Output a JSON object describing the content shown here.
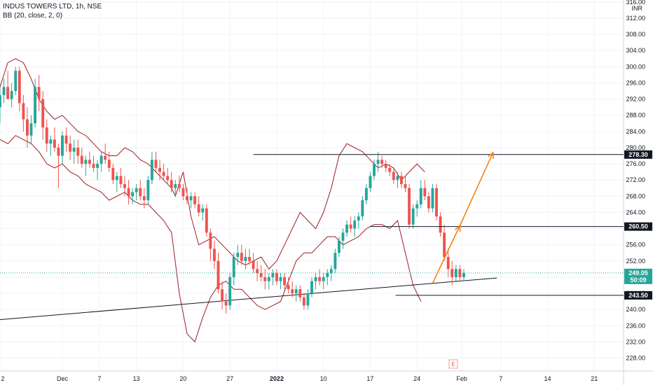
{
  "header": {
    "title": "INDUS TOWERS LTD, 1h, NSE",
    "indicator": "BB (20, close, 2, 0)"
  },
  "colors": {
    "up": "#26a69a",
    "down": "#ef5350",
    "bollinger": "#9c1e23",
    "level_line": "#131722",
    "projection": "#f57c00",
    "current_price_line": "#26a69a",
    "level_label_bg": "#131722"
  },
  "chart_data": {
    "type": "candlestick",
    "title": "INDUS TOWERS LTD, 1h, NSE",
    "currency": "INR",
    "y_axis": {
      "ylim": [
        224.8,
        316.5
      ],
      "ticks": [
        228,
        232,
        236,
        240,
        244,
        248,
        252,
        256,
        260,
        264,
        268,
        272,
        276,
        280,
        284,
        288,
        292,
        296,
        300,
        304,
        308,
        312,
        316
      ],
      "tick_labels": [
        "228.00",
        "232.00",
        "236.00",
        "240.00",
        "244.00",
        "248.00",
        "252.00",
        "256.00",
        "260.00",
        "264.00",
        "268.00",
        "272.00",
        "276.00",
        "280.00",
        "284.00",
        "288.00",
        "292.00",
        "296.00",
        "300.00",
        "304.00",
        "308.00",
        "312.00",
        "316.00"
      ]
    },
    "x_axis": {
      "xlim": [
        0,
        320
      ],
      "ticks": [
        {
          "x": 0,
          "label": "2",
          "bold": false
        },
        {
          "x": 32,
          "label": "Dec",
          "bold": false
        },
        {
          "x": 51,
          "label": "7",
          "bold": false
        },
        {
          "x": 70,
          "label": "13",
          "bold": false
        },
        {
          "x": 94,
          "label": "20",
          "bold": false
        },
        {
          "x": 118,
          "label": "27",
          "bold": false
        },
        {
          "x": 142,
          "label": "2022",
          "bold": true
        },
        {
          "x": 166,
          "label": "10",
          "bold": false
        },
        {
          "x": 190,
          "label": "17",
          "bold": false
        },
        {
          "x": 214,
          "label": "24",
          "bold": false
        },
        {
          "x": 237,
          "label": "Feb",
          "bold": false
        },
        {
          "x": 257,
          "label": "7",
          "bold": false
        },
        {
          "x": 281,
          "label": "14",
          "bold": false
        },
        {
          "x": 305,
          "label": "21",
          "bold": false
        }
      ]
    },
    "candles_ohlc": [
      [
        290,
        295,
        286,
        293
      ],
      [
        293,
        297,
        291,
        295
      ],
      [
        295,
        299,
        293,
        292
      ],
      [
        292,
        296,
        290,
        294
      ],
      [
        294,
        300,
        293,
        299
      ],
      [
        299,
        300,
        289,
        291
      ],
      [
        291,
        293,
        284,
        287
      ],
      [
        287,
        290,
        280,
        283
      ],
      [
        283,
        288,
        281,
        286
      ],
      [
        286,
        297,
        285,
        295
      ],
      [
        295,
        298,
        289,
        292
      ],
      [
        292,
        294,
        282,
        285
      ],
      [
        285,
        287,
        279,
        281
      ],
      [
        281,
        283,
        278,
        282
      ],
      [
        282,
        285,
        279,
        280
      ],
      [
        280,
        281,
        270,
        278
      ],
      [
        278,
        284,
        276,
        283
      ],
      [
        283,
        285,
        279,
        281
      ],
      [
        281,
        283,
        277,
        279
      ],
      [
        279,
        282,
        276,
        280
      ],
      [
        280,
        282,
        276,
        278
      ],
      [
        278,
        280,
        275,
        276
      ],
      [
        276,
        278,
        273,
        277
      ],
      [
        277,
        279,
        275,
        276
      ],
      [
        276,
        278,
        274,
        275
      ],
      [
        275,
        277,
        272,
        276
      ],
      [
        276,
        279,
        274,
        278
      ],
      [
        278,
        281,
        276,
        277
      ],
      [
        277,
        279,
        274,
        275
      ],
      [
        275,
        276,
        271,
        272
      ],
      [
        272,
        274,
        269,
        273
      ],
      [
        273,
        275,
        270,
        271
      ],
      [
        271,
        273,
        268,
        270
      ],
      [
        270,
        272,
        266,
        268
      ],
      [
        268,
        270,
        266,
        269
      ],
      [
        269,
        271,
        267,
        270
      ],
      [
        270,
        272,
        267,
        268
      ],
      [
        268,
        270,
        265,
        267
      ],
      [
        267,
        273,
        266,
        272
      ],
      [
        272,
        279,
        271,
        277
      ],
      [
        277,
        279,
        274,
        275
      ],
      [
        275,
        277,
        272,
        274
      ],
      [
        274,
        276,
        272,
        273
      ],
      [
        273,
        275,
        271,
        272
      ],
      [
        272,
        274,
        269,
        270
      ],
      [
        270,
        272,
        268,
        271
      ],
      [
        271,
        273,
        269,
        270
      ],
      [
        270,
        271,
        267,
        268
      ],
      [
        268,
        270,
        266,
        267
      ],
      [
        267,
        269,
        265,
        268
      ],
      [
        268,
        269,
        265,
        266
      ],
      [
        266,
        268,
        263,
        264
      ],
      [
        264,
        266,
        262,
        265
      ],
      [
        265,
        266,
        258,
        259
      ],
      [
        259,
        260,
        252,
        255
      ],
      [
        255,
        257,
        250,
        252
      ],
      [
        252,
        254,
        244,
        245
      ],
      [
        245,
        247,
        240,
        242
      ],
      [
        242,
        244,
        239,
        241
      ],
      [
        241,
        249,
        240,
        248
      ],
      [
        248,
        254,
        246,
        253
      ],
      [
        253,
        256,
        251,
        254
      ],
      [
        254,
        256,
        251,
        252
      ],
      [
        252,
        255,
        250,
        253
      ],
      [
        253,
        255,
        251,
        252
      ],
      [
        252,
        254,
        249,
        250
      ],
      [
        250,
        252,
        247,
        249
      ],
      [
        249,
        251,
        247,
        248
      ],
      [
        248,
        250,
        245,
        247
      ],
      [
        247,
        249,
        245,
        248
      ],
      [
        248,
        250,
        246,
        249
      ],
      [
        249,
        250,
        246,
        247
      ],
      [
        247,
        249,
        245,
        248
      ],
      [
        248,
        249,
        245,
        246
      ],
      [
        246,
        248,
        244,
        245
      ],
      [
        245,
        247,
        243,
        244
      ],
      [
        244,
        246,
        242,
        245
      ],
      [
        245,
        246,
        242,
        243
      ],
      [
        243,
        244,
        240,
        241
      ],
      [
        241,
        245,
        240,
        244
      ],
      [
        244,
        248,
        243,
        247
      ],
      [
        247,
        249,
        245,
        248
      ],
      [
        248,
        250,
        246,
        247
      ],
      [
        247,
        249,
        245,
        248
      ],
      [
        248,
        250,
        246,
        249
      ],
      [
        249,
        251,
        247,
        250
      ],
      [
        250,
        255,
        249,
        254
      ],
      [
        254,
        258,
        253,
        257
      ],
      [
        257,
        260,
        255,
        259
      ],
      [
        259,
        262,
        258,
        261
      ],
      [
        261,
        263,
        259,
        260
      ],
      [
        260,
        263,
        258,
        262
      ],
      [
        262,
        264,
        260,
        263
      ],
      [
        263,
        268,
        262,
        267
      ],
      [
        267,
        271,
        266,
        270
      ],
      [
        270,
        274,
        269,
        273
      ],
      [
        273,
        277,
        272,
        276
      ],
      [
        276,
        279,
        274,
        277
      ],
      [
        277,
        278,
        275,
        276
      ],
      [
        276,
        277,
        274,
        275
      ],
      [
        275,
        276,
        273,
        274
      ],
      [
        274,
        275,
        271,
        272
      ],
      [
        272,
        274,
        270,
        273
      ],
      [
        273,
        274,
        270,
        271
      ],
      [
        271,
        273,
        269,
        270
      ],
      [
        270,
        271,
        260,
        261
      ],
      [
        261,
        266,
        260,
        265
      ],
      [
        265,
        267,
        263,
        266
      ],
      [
        266,
        272,
        265,
        270
      ],
      [
        270,
        272,
        267,
        268
      ],
      [
        268,
        269,
        264,
        265
      ],
      [
        265,
        271,
        264,
        270
      ],
      [
        270,
        271,
        262,
        263
      ],
      [
        263,
        264,
        258,
        259
      ],
      [
        259,
        261,
        252,
        253
      ],
      [
        253,
        255,
        248,
        250
      ],
      [
        250,
        252,
        246,
        248
      ],
      [
        248,
        251,
        247,
        250
      ],
      [
        250,
        251,
        247,
        248
      ],
      [
        248,
        250,
        247,
        249
      ]
    ],
    "candle_start_x": 0,
    "candle_step_x": 2.0,
    "bollinger": {
      "upper": [
        [
          0,
          295
        ],
        [
          4,
          301
        ],
        [
          8,
          302
        ],
        [
          12,
          301
        ],
        [
          16,
          297
        ],
        [
          20,
          292
        ],
        [
          24,
          289
        ],
        [
          28,
          287
        ],
        [
          32,
          288
        ],
        [
          36,
          286
        ],
        [
          40,
          284
        ],
        [
          44,
          283
        ],
        [
          48,
          281
        ],
        [
          52,
          279
        ],
        [
          56,
          278
        ],
        [
          60,
          278
        ],
        [
          64,
          280
        ],
        [
          68,
          279
        ],
        [
          72,
          277
        ],
        [
          76,
          276
        ],
        [
          80,
          274
        ],
        [
          84,
          272
        ],
        [
          88,
          270
        ],
        [
          90,
          268
        ],
        [
          94,
          274
        ],
        [
          98,
          263
        ],
        [
          102,
          256
        ],
        [
          106,
          257
        ],
        [
          110,
          258
        ],
        [
          114,
          256
        ],
        [
          118,
          254
        ],
        [
          122,
          252
        ],
        [
          126,
          251
        ],
        [
          130,
          252
        ],
        [
          134,
          253
        ],
        [
          138,
          250
        ],
        [
          142,
          252
        ],
        [
          146,
          256
        ],
        [
          150,
          260
        ],
        [
          154,
          264
        ],
        [
          158,
          262
        ],
        [
          162,
          260
        ],
        [
          166,
          264
        ],
        [
          170,
          270
        ],
        [
          174,
          278
        ],
        [
          178,
          281
        ],
        [
          182,
          280
        ],
        [
          186,
          279
        ],
        [
          190,
          277
        ],
        [
          194,
          275
        ],
        [
          198,
          276
        ],
        [
          202,
          275
        ],
        [
          206,
          272
        ],
        [
          210,
          274
        ],
        [
          214,
          276
        ],
        [
          218,
          274
        ]
      ],
      "lower": [
        [
          0,
          282
        ],
        [
          4,
          281
        ],
        [
          8,
          283
        ],
        [
          12,
          282
        ],
        [
          16,
          281
        ],
        [
          20,
          279
        ],
        [
          24,
          276
        ],
        [
          28,
          275
        ],
        [
          32,
          276
        ],
        [
          36,
          274
        ],
        [
          40,
          273
        ],
        [
          44,
          271
        ],
        [
          48,
          270
        ],
        [
          52,
          269
        ],
        [
          56,
          267
        ],
        [
          60,
          268
        ],
        [
          64,
          269
        ],
        [
          68,
          267
        ],
        [
          72,
          266
        ],
        [
          76,
          266
        ],
        [
          80,
          264
        ],
        [
          84,
          262
        ],
        [
          88,
          259
        ],
        [
          92,
          244
        ],
        [
          96,
          234
        ],
        [
          100,
          232
        ],
        [
          104,
          238
        ],
        [
          108,
          243
        ],
        [
          112,
          246
        ],
        [
          116,
          247
        ],
        [
          120,
          245
        ],
        [
          124,
          245
        ],
        [
          128,
          243
        ],
        [
          132,
          241
        ],
        [
          136,
          240
        ],
        [
          140,
          241
        ],
        [
          144,
          242
        ],
        [
          148,
          247
        ],
        [
          152,
          252
        ],
        [
          156,
          254
        ],
        [
          160,
          254
        ],
        [
          164,
          256
        ],
        [
          168,
          258
        ],
        [
          172,
          258
        ],
        [
          176,
          256
        ],
        [
          180,
          257
        ],
        [
          184,
          258
        ],
        [
          188,
          260
        ],
        [
          192,
          261
        ],
        [
          196,
          261
        ],
        [
          200,
          260
        ],
        [
          204,
          262
        ],
        [
          208,
          254
        ],
        [
          212,
          246
        ],
        [
          214,
          244
        ],
        [
          216,
          242
        ]
      ]
    },
    "horizontal_levels": [
      {
        "price": 278.3,
        "label": "278.30",
        "x_start": 130
      },
      {
        "price": 260.5,
        "label": "260.50",
        "x_start": 190
      },
      {
        "price": 243.5,
        "label": "243.50",
        "x_start": 203
      }
    ],
    "trendline": {
      "x1": 0,
      "y1": 237.5,
      "x2": 255,
      "y2": 247.8
    },
    "projection_path": [
      [
        222,
        246.5
      ],
      [
        236,
        260.7
      ],
      [
        253,
        278.8
      ]
    ],
    "current_price": {
      "price": 249.05,
      "label": "249.05",
      "countdown": "50:09"
    }
  }
}
